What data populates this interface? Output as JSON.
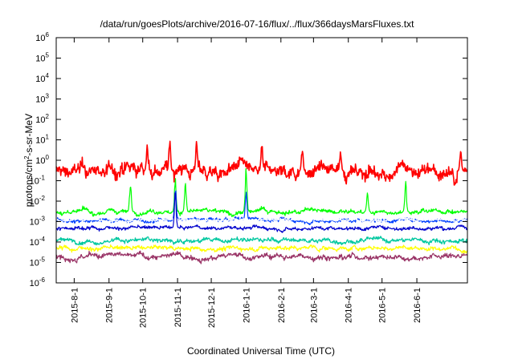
{
  "chart_data": {
    "type": "line",
    "title": "/data/run/goesPlots/archive/2016-07-16/flux/../flux/366daysMarsFluxes.txt",
    "xlabel": "Coordinated Universal Time (UTC)",
    "ylabel": "protons/cm2-s-sr-MeV",
    "y_scale": "log",
    "ylim": [
      1e-06,
      1000000.0
    ],
    "xlim": [
      "2015-07-16",
      "2016-07-16"
    ],
    "x_ticks": [
      "2015-8-1",
      "2015-9-1",
      "2015-10-1",
      "2015-11-1",
      "2015-12-1",
      "2016-1-1",
      "2016-2-1",
      "2016-3-1",
      "2016-4-1",
      "2016-5-1",
      "2016-6-1"
    ],
    "y_ticks": [
      1e-06,
      1e-05,
      0.0001,
      0.001,
      0.01,
      0.1,
      1.0,
      10.0,
      100.0,
      1000.0,
      10000.0,
      100000.0,
      1000000.0
    ],
    "grid": false,
    "legend": "none",
    "series": [
      {
        "color": "#ff0000",
        "baseline": 0.3,
        "noise_decades": 0.45,
        "spikes": [
          [
            "2015-10-05",
            8
          ],
          [
            "2015-10-25",
            12
          ],
          [
            "2015-11-18",
            10
          ],
          [
            "2016-01-15",
            7
          ],
          [
            "2016-02-20",
            4
          ],
          [
            "2016-03-25",
            3
          ],
          [
            "2016-07-10",
            3
          ]
        ]
      },
      {
        "color": "#00ff00",
        "baseline": 0.003,
        "noise_decades": 0.15,
        "spikes": [
          [
            "2015-09-20",
            0.1
          ],
          [
            "2015-10-30",
            0.15
          ],
          [
            "2015-11-08",
            0.08
          ],
          [
            "2016-01-01",
            0.5
          ],
          [
            "2016-04-18",
            0.03
          ],
          [
            "2016-05-22",
            0.1
          ]
        ]
      },
      {
        "color": "#0040ff",
        "baseline": 0.0012,
        "noise_decades": 0.12,
        "spikes": [
          [
            "2015-10-30",
            0.1
          ],
          [
            "2016-01-01",
            0.05
          ]
        ]
      },
      {
        "color": "#ffffff",
        "baseline": 0.0012,
        "noise_decades": 0.08,
        "spikes": []
      },
      {
        "color": "#0000cc",
        "baseline": 0.0005,
        "noise_decades": 0.12,
        "spikes": [
          [
            "2015-10-30",
            0.05
          ]
        ]
      },
      {
        "color": "#00c8a0",
        "baseline": 0.00012,
        "noise_decades": 0.15,
        "spikes": []
      },
      {
        "color": "#ffff00",
        "baseline": 5e-05,
        "noise_decades": 0.15,
        "spikes": []
      },
      {
        "color": "#993366",
        "baseline": 2e-05,
        "noise_decades": 0.18,
        "spikes": []
      }
    ]
  }
}
